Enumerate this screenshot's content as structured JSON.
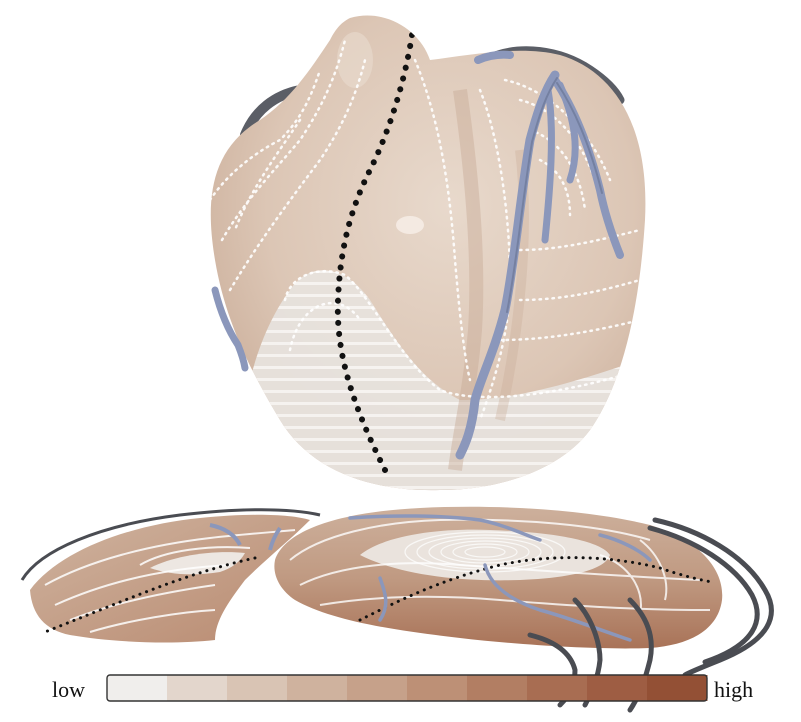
{
  "legend": {
    "low_label": "low",
    "high_label": "high",
    "colors": [
      "#f0eeec",
      "#e3d6cc",
      "#d9c4b4",
      "#cfb29e",
      "#c6a18a",
      "#bd9076",
      "#b27e63",
      "#a86d52",
      "#9e5d43",
      "#935035"
    ]
  },
  "palette": {
    "heart_surface": "#dfcbbb",
    "heart_shade": "#c9ad98",
    "low_region": "#eeeae6",
    "vessel": "#8b97bb",
    "vessel_dark": "#5b5e66",
    "contour": "#ffffff",
    "path": "#111111"
  }
}
